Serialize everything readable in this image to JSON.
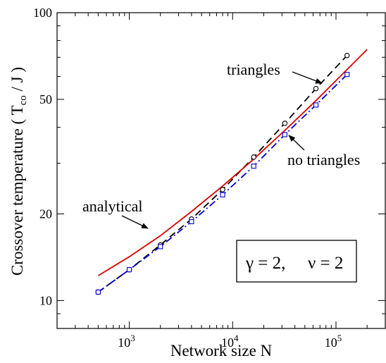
{
  "chart_data": {
    "type": "line",
    "xscale": "log",
    "yscale": "log",
    "xlim": [
      200,
      300000
    ],
    "ylim": [
      8,
      100
    ],
    "xlabel": "Network  size  N",
    "ylabel": "Crossover  temperature   ( T",
    "ylabel_sub": "co",
    "ylabel_end": " / J )",
    "x_ticks": [
      {
        "value": 1000,
        "base": "10",
        "exp": "3"
      },
      {
        "value": 10000,
        "base": "10",
        "exp": "4"
      },
      {
        "value": 100000,
        "base": "10",
        "exp": "5"
      }
    ],
    "y_ticks": [
      {
        "value": 10,
        "label": "10"
      },
      {
        "value": 20,
        "label": "20"
      },
      {
        "value": 50,
        "label": "50"
      },
      {
        "value": 100,
        "label": "100"
      }
    ],
    "series": [
      {
        "name": "triangles",
        "color": "#000000",
        "style": "dashed",
        "marker": "circle",
        "x": [
          500,
          1000,
          2000,
          4000,
          8000,
          16000,
          32000,
          64000,
          128000
        ],
        "y": [
          10.7,
          12.8,
          15.6,
          19.2,
          24.3,
          31.5,
          41.3,
          54.5,
          71.0
        ]
      },
      {
        "name": "no triangles",
        "color": "#0000cc",
        "style": "dashdot",
        "marker": "square",
        "x": [
          500,
          1000,
          2000,
          4000,
          8000,
          16000,
          32000,
          64000,
          128000
        ],
        "y": [
          10.7,
          12.8,
          15.4,
          18.8,
          23.3,
          29.3,
          37.7,
          47.8,
          61.0
        ]
      },
      {
        "name": "analytical",
        "color": "#dd0000",
        "style": "solid",
        "marker": "none",
        "x": [
          500,
          1000,
          2000,
          4000,
          8000,
          16000,
          32000,
          64000,
          128000,
          200000
        ],
        "y": [
          12.2,
          14.2,
          16.8,
          20.4,
          25.0,
          31.0,
          39.0,
          49.5,
          63.5,
          74.5
        ]
      }
    ],
    "annotations": {
      "triangles": "triangles",
      "no_triangles": "no triangles",
      "analytical": "analytical"
    },
    "inset": {
      "gamma": "γ = 2,",
      "nu": "ν = 2"
    }
  }
}
